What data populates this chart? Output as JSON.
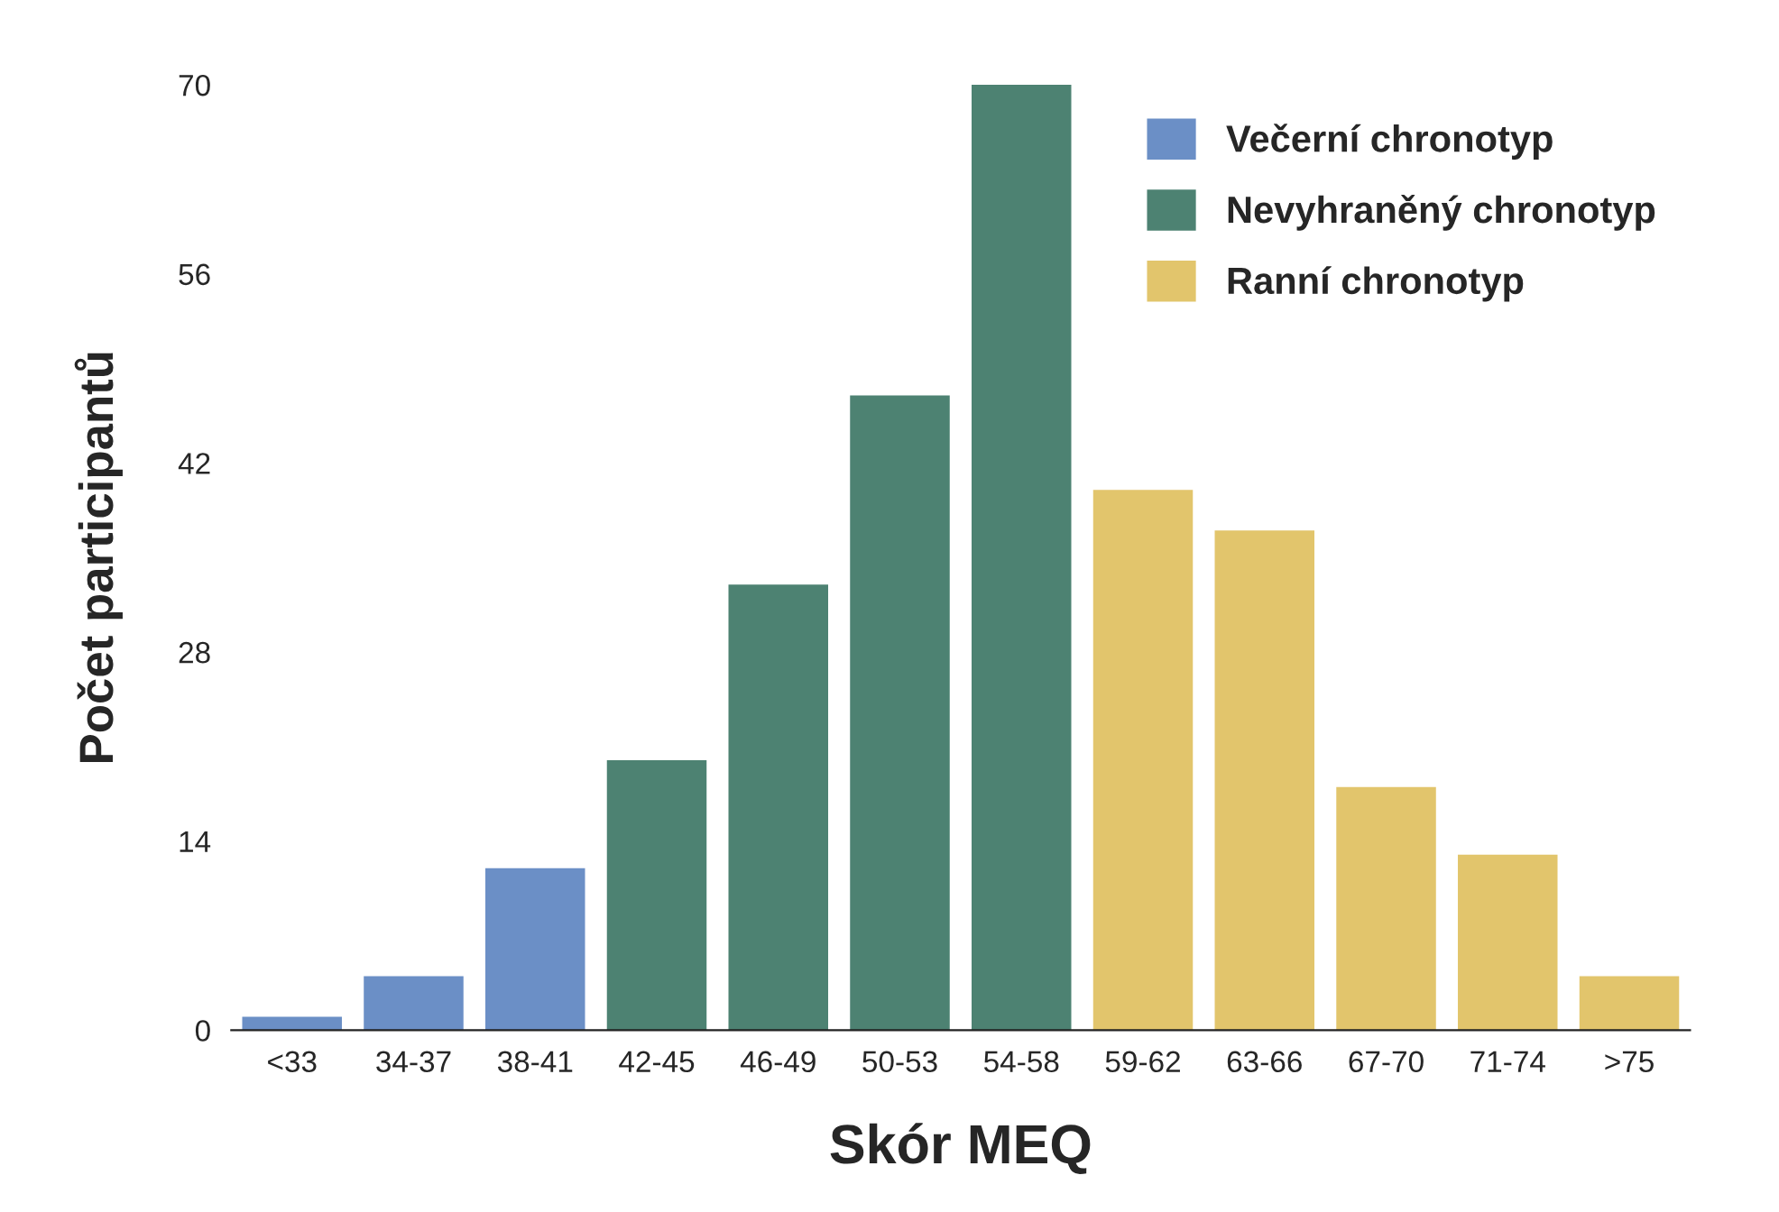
{
  "chart_data": {
    "type": "bar",
    "xlabel": "Skór MEQ",
    "ylabel": "Počet participantů",
    "categories": [
      "<33",
      "34-37",
      "38-41",
      "42-45",
      "46-49",
      "50-53",
      "54-58",
      "59-62",
      "63-66",
      "67-70",
      "71-74",
      ">75"
    ],
    "series": [
      {
        "name": "Večerní chronotyp",
        "color": "#6b8fc6",
        "values": [
          1,
          4,
          12,
          null,
          null,
          null,
          null,
          null,
          null,
          null,
          null,
          null
        ]
      },
      {
        "name": "Nevyhraněný chronotyp",
        "color": "#4d8272",
        "values": [
          null,
          null,
          null,
          20,
          33,
          47,
          70,
          null,
          null,
          null,
          null,
          null
        ]
      },
      {
        "name": "Ranní chronotyp",
        "color": "#e2c56c",
        "values": [
          null,
          null,
          null,
          null,
          null,
          null,
          null,
          40,
          37,
          18,
          13,
          4
        ]
      }
    ],
    "ylim": [
      0,
      70
    ],
    "yticks": [
      0,
      14,
      28,
      42,
      56,
      70
    ],
    "grid": false,
    "legend": "top right"
  }
}
